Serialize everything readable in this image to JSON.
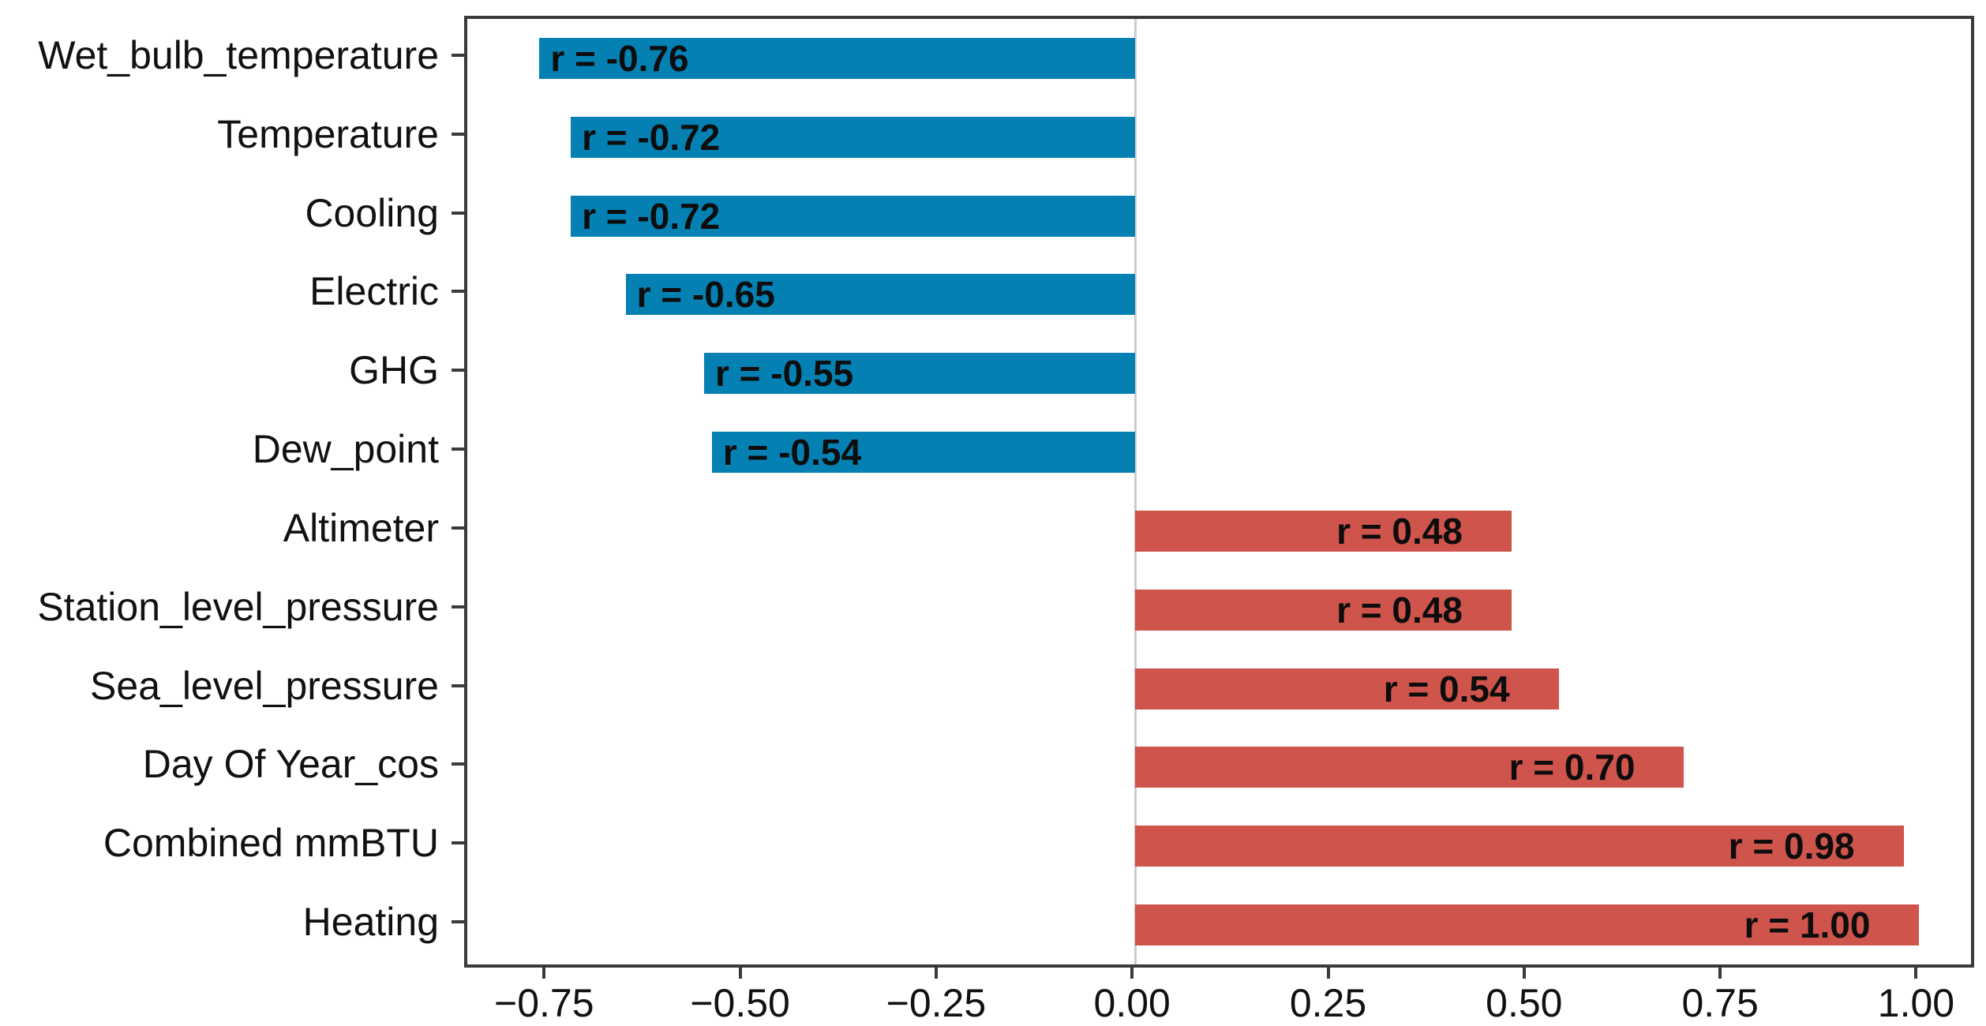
{
  "figure": {
    "background": "#ffffff",
    "axis_spine_color": "#3a3a3a",
    "zero_line_color": "#cccccc",
    "text_color": "#111111"
  },
  "chart_data": {
    "type": "bar",
    "orientation": "horizontal",
    "title": "",
    "xlabel": "",
    "ylabel": "",
    "grid": false,
    "legend": "none",
    "categories": [
      "Wet_bulb_temperature",
      "Temperature",
      "Cooling",
      "Electric",
      "GHG",
      "Dew_point",
      "Altimeter",
      "Station_level_pressure",
      "Sea_level_pressure",
      "Day Of Year_cos",
      "Combined mmBTU",
      "Heating"
    ],
    "values": [
      -0.76,
      -0.72,
      -0.72,
      -0.65,
      -0.55,
      -0.54,
      0.48,
      0.48,
      0.54,
      0.7,
      0.98,
      1.0
    ],
    "bar_labels": [
      "r = -0.76",
      "r = -0.72",
      "r = -0.72",
      "r = -0.65",
      "r = -0.55",
      "r = -0.54",
      "r = 0.48",
      "r = 0.48",
      "r = 0.54",
      "r = 0.70",
      "r = 0.98",
      "r = 1.00"
    ],
    "negative_bar_color": "#0480b3",
    "positive_bar_color": "#cf544b",
    "value_label_color": "#0d0d0d",
    "xlim": [
      -0.852,
      1.066
    ],
    "xticks": [
      -0.75,
      -0.5,
      -0.25,
      0.0,
      0.25,
      0.5,
      0.75,
      1.0
    ],
    "xtick_labels": [
      "−0.75",
      "−0.50",
      "−0.25",
      "0.00",
      "0.25",
      "0.50",
      "0.75",
      "1.00"
    ]
  }
}
